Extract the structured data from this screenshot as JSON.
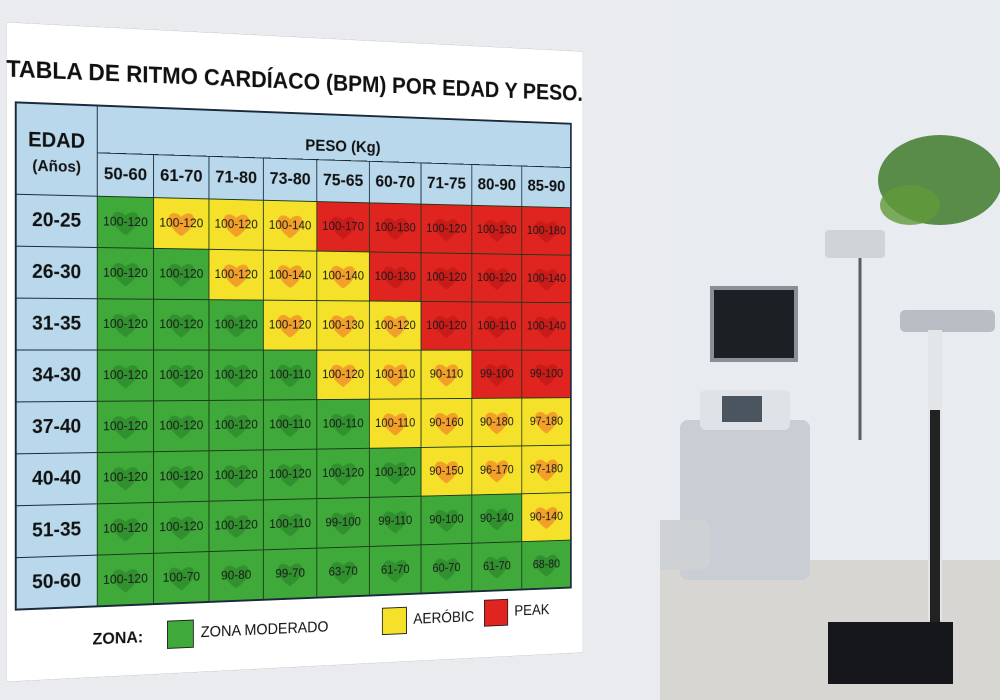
{
  "title": "TABLA DE RITMO CARDÍACO (BPM) POR EDAD Y PESO.",
  "table": {
    "age_header": "EDAD",
    "age_unit": "(Años)",
    "weight_header": "PESO (Kg)",
    "columns": [
      "50-60",
      "61-70",
      "71-80",
      "73-80",
      "75-65",
      "60-70",
      "71-75",
      "80-90",
      "85-90"
    ],
    "rows": [
      {
        "age": "20-25",
        "cells": [
          "100-120",
          "100-120",
          "100-120",
          "100-140",
          "100-170",
          "100-130",
          "100-120",
          "100-130",
          "100-180"
        ],
        "colors": [
          "#3fa93a",
          "#f5e12a",
          "#f5e12a",
          "#f5e12a",
          "#e0241f",
          "#e0241f",
          "#e0241f",
          "#e0241f",
          "#e0241f"
        ]
      },
      {
        "age": "26-30",
        "cells": [
          "100-120",
          "100-120",
          "100-120",
          "100-140",
          "100-140",
          "100-130",
          "100-120",
          "100-120",
          "100-140"
        ],
        "colors": [
          "#3fa93a",
          "#3fa93a",
          "#f5e12a",
          "#f5e12a",
          "#f5e12a",
          "#e0241f",
          "#e0241f",
          "#e0241f",
          "#e0241f"
        ]
      },
      {
        "age": "31-35",
        "cells": [
          "100-120",
          "100-120",
          "100-120",
          "100-120",
          "100-130",
          "100-120",
          "100-120",
          "100-110",
          "100-140"
        ],
        "colors": [
          "#3fa93a",
          "#3fa93a",
          "#3fa93a",
          "#f5e12a",
          "#f5e12a",
          "#f5e12a",
          "#e0241f",
          "#e0241f",
          "#e0241f"
        ]
      },
      {
        "age": "34-30",
        "cells": [
          "100-120",
          "100-120",
          "100-120",
          "100-110",
          "100-120",
          "100-110",
          "90-110",
          "99-100",
          "99-100"
        ],
        "colors": [
          "#3fa93a",
          "#3fa93a",
          "#3fa93a",
          "#3fa93a",
          "#f5e12a",
          "#f5e12a",
          "#f5e12a",
          "#e0241f",
          "#e0241f"
        ]
      },
      {
        "age": "37-40",
        "cells": [
          "100-120",
          "100-120",
          "100-120",
          "100-110",
          "100-110",
          "100-110",
          "90-160",
          "90-180",
          "97-180"
        ],
        "colors": [
          "#3fa93a",
          "#3fa93a",
          "#3fa93a",
          "#3fa93a",
          "#3fa93a",
          "#f5e12a",
          "#f5e12a",
          "#f5e12a",
          "#f5e12a"
        ]
      },
      {
        "age": "40-40",
        "cells": [
          "100-120",
          "100-120",
          "100-120",
          "100-120",
          "100-120",
          "100-120",
          "90-150",
          "96-170",
          "97-180"
        ],
        "colors": [
          "#3fa93a",
          "#3fa93a",
          "#3fa93a",
          "#3fa93a",
          "#3fa93a",
          "#3fa93a",
          "#f5e12a",
          "#f5e12a",
          "#f5e12a"
        ]
      },
      {
        "age": "51-35",
        "cells": [
          "100-120",
          "100-120",
          "100-120",
          "100-110",
          "99-100",
          "99-110",
          "90-100",
          "90-140",
          "90-140"
        ],
        "colors": [
          "#3fa93a",
          "#3fa93a",
          "#3fa93a",
          "#3fa93a",
          "#3fa93a",
          "#3fa93a",
          "#3fa93a",
          "#3fa93a",
          "#f5e12a"
        ]
      },
      {
        "age": "50-60",
        "cells": [
          "100-120",
          "100-70",
          "90-80",
          "99-70",
          "63-70",
          "61-70",
          "60-70",
          "61-70",
          "68-80"
        ],
        "colors": [
          "#3fa93a",
          "#3fa93a",
          "#3fa93a",
          "#3fa93a",
          "#3fa93a",
          "#3fa93a",
          "#3fa93a",
          "#3fa93a",
          "#3fa93a"
        ]
      }
    ]
  },
  "legend": {
    "label": "ZONA:",
    "items": [
      {
        "label": "ZONA MODERADO",
        "color": "#3fa93a"
      },
      {
        "label": "AERÓBIC",
        "color": "#f5e12a"
      },
      {
        "label": "PEAK",
        "color": "#e0241f"
      }
    ]
  }
}
